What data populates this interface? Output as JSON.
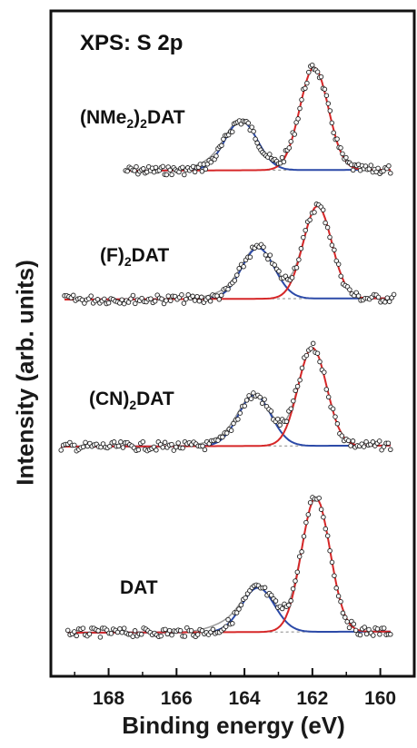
{
  "chart_data": {
    "type": "line",
    "title": "XPS: S 2p",
    "xlabel": "Binding energy (eV)",
    "ylabel": "Intensity (arb. units)",
    "xlim": [
      169.7,
      159.0
    ],
    "x_reversed": true,
    "x_ticks": [
      168,
      166,
      164,
      162,
      160
    ],
    "y_ticks_shown": false,
    "grid": false,
    "components": {
      "s2p32_color": "#d62728",
      "s2p12_color": "#2c4aa8",
      "envelope_color": "#999999",
      "background_color": "#888888",
      "data_marker": "open-circle"
    },
    "spectra": [
      {
        "name": "(NMe",
        "sub1": "2",
        "mid": ")",
        "sub2": "2",
        "suffix": "DAT",
        "label_full": "(NMe2)2DAT",
        "x_range": [
          167.5,
          159.7
        ],
        "peak_32_eV": 161.95,
        "peak_12_eV": 164.1,
        "peak_32_height": 1.0,
        "peak_12_height": 0.48
      },
      {
        "name": "(F)",
        "sub1": "2",
        "mid": "",
        "sub2": "",
        "suffix": "DAT",
        "label_full": "(F)2DAT",
        "x_range": [
          169.3,
          159.6
        ],
        "peak_32_eV": 161.85,
        "peak_12_eV": 163.6,
        "peak_32_height": 1.0,
        "peak_12_height": 0.55
      },
      {
        "name": "(CN)",
        "sub1": "2",
        "mid": "",
        "sub2": "",
        "suffix": "DAT",
        "label_full": "(CN)2DAT",
        "x_range": [
          169.4,
          159.7
        ],
        "peak_32_eV": 162.0,
        "peak_12_eV": 163.7,
        "peak_32_height": 1.0,
        "peak_12_height": 0.52
      },
      {
        "name": "DAT",
        "sub1": "",
        "mid": "",
        "sub2": "",
        "suffix": "",
        "label_full": "DAT",
        "x_range": [
          169.2,
          159.7
        ],
        "peak_32_eV": 161.9,
        "peak_12_eV": 163.6,
        "peak_32_height": 1.0,
        "peak_12_height": 0.33
      }
    ]
  }
}
